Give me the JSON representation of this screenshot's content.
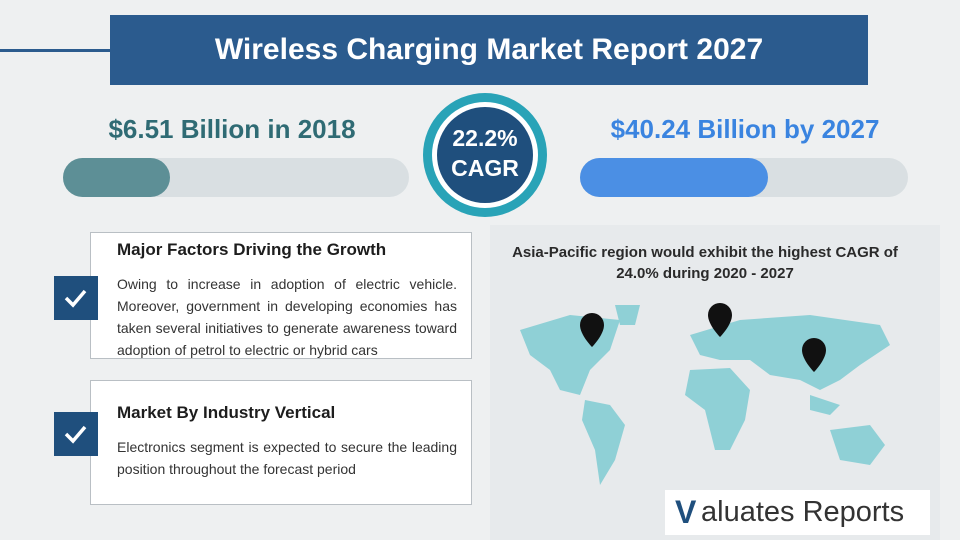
{
  "header": {
    "title": "Wireless Charging Market Report 2027"
  },
  "stats": {
    "start": "$6.51 Billion in 2018",
    "cagr_value": "22.2%",
    "cagr_label": "CAGR",
    "end": "$40.24 Billion by 2027"
  },
  "sections": [
    {
      "heading": "Major Factors Driving the Growth",
      "body": "Owing to increase in adoption of electric vehicle. Moreover, government in developing economies has taken several initiatives to generate awareness toward adoption of petrol to electric or hybrid cars"
    },
    {
      "heading": "Market By Industry Vertical",
      "body": "Electronics segment is expected to secure the leading position throughout the forecast period"
    }
  ],
  "map": {
    "caption": "Asia-Pacific region would exhibit the highest CAGR of 24.0% during 2020 - 2027"
  },
  "logo": {
    "mark": "V",
    "text": "aluates Reports"
  }
}
